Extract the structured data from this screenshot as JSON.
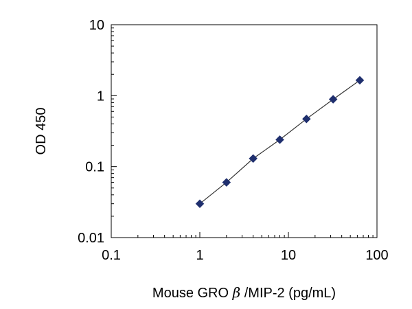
{
  "chart_data": {
    "type": "scatter",
    "title": "",
    "xlabel_parts": [
      "Mouse GRO ",
      "β",
      " /MIP-2 (pg/mL)"
    ],
    "ylabel": "OD 450",
    "x_scale": "log",
    "y_scale": "log",
    "xlim": [
      0.1,
      100
    ],
    "ylim": [
      0.01,
      10
    ],
    "x_ticks": [
      0.1,
      1,
      10,
      100
    ],
    "x_tick_labels": [
      "0.1",
      "1",
      "10",
      "100"
    ],
    "y_ticks": [
      0.01,
      0.1,
      1,
      10
    ],
    "y_tick_labels": [
      "0.01",
      "0.1",
      "1",
      "10"
    ],
    "grid": false,
    "legend": "none",
    "colors": {
      "marker": "#1f2f6e",
      "line": "#333333",
      "axis": "#000000"
    },
    "series": [
      {
        "marker": "diamond",
        "fit_line": true,
        "x": [
          1,
          2,
          4,
          8,
          16,
          32,
          64
        ],
        "y": [
          0.03,
          0.06,
          0.13,
          0.24,
          0.47,
          0.89,
          1.65
        ]
      }
    ]
  }
}
